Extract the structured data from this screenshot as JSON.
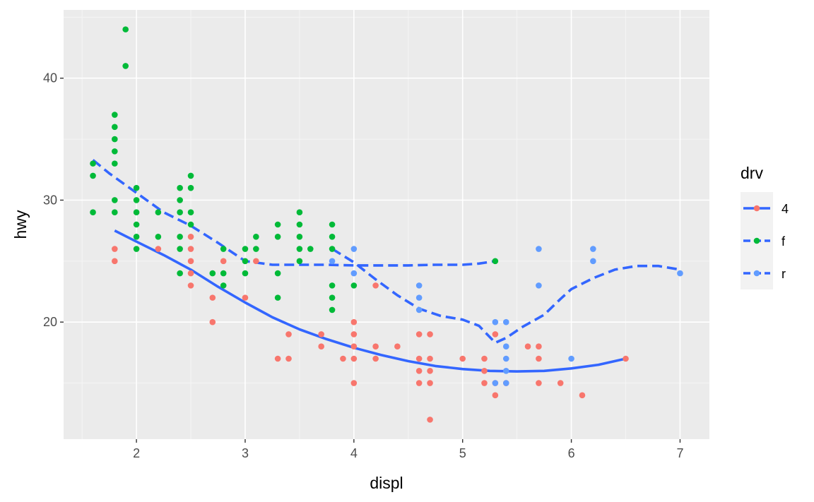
{
  "chart_data": {
    "type": "scatter",
    "title": "",
    "xlabel": "displ",
    "ylabel": "hwy",
    "xlim": [
      1.33,
      7.27
    ],
    "ylim": [
      10.4,
      45.6
    ],
    "x_ticks": [
      2,
      3,
      4,
      5,
      6,
      7
    ],
    "y_ticks": [
      20,
      30,
      40
    ],
    "grid": true,
    "legend": {
      "title": "drv",
      "position": "right",
      "entries": [
        {
          "label": "4",
          "color": "#F8766D",
          "linetype": "solid"
        },
        {
          "label": "f",
          "color": "#00BA38",
          "linetype": "dashed"
        },
        {
          "label": "r",
          "color": "#619CFF",
          "linetype": "dashed"
        }
      ]
    },
    "smooth_color": "#3366FF",
    "series": [
      {
        "name": "4",
        "color": "#F8766D",
        "points": [
          [
            1.8,
            26
          ],
          [
            1.8,
            25
          ],
          [
            2.2,
            26
          ],
          [
            2.5,
            27
          ],
          [
            2.5,
            26
          ],
          [
            2.5,
            25
          ],
          [
            2.5,
            24
          ],
          [
            2.5,
            23
          ],
          [
            2.7,
            22
          ],
          [
            2.7,
            20
          ],
          [
            2.8,
            25
          ],
          [
            3.0,
            22
          ],
          [
            3.1,
            25
          ],
          [
            3.3,
            17
          ],
          [
            3.4,
            19
          ],
          [
            3.4,
            17
          ],
          [
            3.7,
            19
          ],
          [
            3.7,
            18
          ],
          [
            3.9,
            17
          ],
          [
            4.0,
            20
          ],
          [
            4.0,
            19
          ],
          [
            4.0,
            18
          ],
          [
            4.0,
            17
          ],
          [
            4.0,
            15
          ],
          [
            4.2,
            23
          ],
          [
            4.2,
            18
          ],
          [
            4.2,
            17
          ],
          [
            4.4,
            18
          ],
          [
            4.6,
            19
          ],
          [
            4.6,
            17
          ],
          [
            4.6,
            16
          ],
          [
            4.6,
            15
          ],
          [
            4.7,
            19
          ],
          [
            4.7,
            17
          ],
          [
            4.7,
            16
          ],
          [
            4.7,
            15
          ],
          [
            4.7,
            12
          ],
          [
            5.0,
            17
          ],
          [
            5.2,
            17
          ],
          [
            5.2,
            16
          ],
          [
            5.2,
            15
          ],
          [
            5.3,
            19
          ],
          [
            5.3,
            15
          ],
          [
            5.3,
            14
          ],
          [
            5.4,
            15
          ],
          [
            5.6,
            18
          ],
          [
            5.7,
            18
          ],
          [
            5.7,
            17
          ],
          [
            5.7,
            15
          ],
          [
            5.9,
            15
          ],
          [
            6.1,
            14
          ],
          [
            6.5,
            17
          ]
        ],
        "smooth": [
          [
            1.8,
            27.5
          ],
          [
            2.0,
            26.6
          ],
          [
            2.25,
            25.5
          ],
          [
            2.5,
            24.3
          ],
          [
            2.75,
            22.9
          ],
          [
            3.0,
            21.6
          ],
          [
            3.25,
            20.4
          ],
          [
            3.5,
            19.4
          ],
          [
            3.75,
            18.6
          ],
          [
            4.0,
            17.9
          ],
          [
            4.25,
            17.3
          ],
          [
            4.5,
            16.8
          ],
          [
            4.75,
            16.4
          ],
          [
            5.0,
            16.15
          ],
          [
            5.25,
            16.0
          ],
          [
            5.5,
            15.95
          ],
          [
            5.75,
            16.0
          ],
          [
            6.0,
            16.2
          ],
          [
            6.25,
            16.5
          ],
          [
            6.5,
            17.0
          ]
        ]
      },
      {
        "name": "f",
        "color": "#00BA38",
        "points": [
          [
            1.6,
            33
          ],
          [
            1.6,
            32
          ],
          [
            1.6,
            29
          ],
          [
            1.8,
            37
          ],
          [
            1.8,
            36
          ],
          [
            1.8,
            35
          ],
          [
            1.8,
            34
          ],
          [
            1.8,
            33
          ],
          [
            1.8,
            30
          ],
          [
            1.8,
            29
          ],
          [
            1.9,
            44
          ],
          [
            1.9,
            41
          ],
          [
            2.0,
            31
          ],
          [
            2.0,
            30
          ],
          [
            2.0,
            29
          ],
          [
            2.0,
            28
          ],
          [
            2.0,
            27
          ],
          [
            2.0,
            26
          ],
          [
            2.2,
            29
          ],
          [
            2.2,
            27
          ],
          [
            2.4,
            31
          ],
          [
            2.4,
            30
          ],
          [
            2.4,
            29
          ],
          [
            2.4,
            27
          ],
          [
            2.4,
            26
          ],
          [
            2.4,
            24
          ],
          [
            2.5,
            32
          ],
          [
            2.5,
            31
          ],
          [
            2.5,
            29
          ],
          [
            2.5,
            28
          ],
          [
            2.7,
            24
          ],
          [
            2.8,
            26
          ],
          [
            2.8,
            24
          ],
          [
            2.8,
            23
          ],
          [
            3.0,
            26
          ],
          [
            3.0,
            25
          ],
          [
            3.0,
            24
          ],
          [
            3.1,
            27
          ],
          [
            3.1,
            26
          ],
          [
            3.3,
            28
          ],
          [
            3.3,
            27
          ],
          [
            3.3,
            24
          ],
          [
            3.3,
            22
          ],
          [
            3.5,
            29
          ],
          [
            3.5,
            28
          ],
          [
            3.5,
            27
          ],
          [
            3.5,
            26
          ],
          [
            3.5,
            25
          ],
          [
            3.6,
            26
          ],
          [
            3.8,
            28
          ],
          [
            3.8,
            27
          ],
          [
            3.8,
            26
          ],
          [
            3.8,
            23
          ],
          [
            3.8,
            22
          ],
          [
            3.8,
            21
          ],
          [
            4.0,
            23
          ],
          [
            5.3,
            25
          ]
        ],
        "smooth": [
          [
            1.6,
            33.3
          ],
          [
            1.75,
            32.2
          ],
          [
            2.0,
            30.6
          ],
          [
            2.25,
            29.0
          ],
          [
            2.5,
            27.9
          ],
          [
            2.75,
            26.5
          ],
          [
            3.0,
            25.0
          ],
          [
            3.25,
            24.7
          ],
          [
            3.5,
            24.7
          ],
          [
            3.75,
            24.7
          ],
          [
            4.0,
            24.65
          ],
          [
            4.25,
            24.65
          ],
          [
            4.5,
            24.65
          ],
          [
            4.75,
            24.7
          ],
          [
            5.0,
            24.7
          ],
          [
            5.15,
            24.8
          ],
          [
            5.3,
            25.0
          ]
        ]
      },
      {
        "name": "r",
        "color": "#619CFF",
        "points": [
          [
            3.8,
            25
          ],
          [
            4.0,
            26
          ],
          [
            4.0,
            24
          ],
          [
            4.6,
            23
          ],
          [
            4.6,
            22
          ],
          [
            4.6,
            21
          ],
          [
            5.3,
            20
          ],
          [
            5.3,
            15
          ],
          [
            5.4,
            20
          ],
          [
            5.4,
            18
          ],
          [
            5.4,
            17
          ],
          [
            5.4,
            16
          ],
          [
            5.4,
            15
          ],
          [
            5.7,
            26
          ],
          [
            5.7,
            23
          ],
          [
            6.0,
            17
          ],
          [
            6.2,
            26
          ],
          [
            6.2,
            25
          ],
          [
            7.0,
            24
          ]
        ],
        "smooth": [
          [
            3.8,
            26.0
          ],
          [
            4.0,
            24.9
          ],
          [
            4.2,
            23.5
          ],
          [
            4.4,
            22.2
          ],
          [
            4.6,
            21.1
          ],
          [
            4.8,
            20.5
          ],
          [
            5.0,
            20.2
          ],
          [
            5.15,
            19.7
          ],
          [
            5.3,
            18.3
          ],
          [
            5.4,
            18.7
          ],
          [
            5.55,
            19.6
          ],
          [
            5.75,
            20.6
          ],
          [
            5.9,
            21.9
          ],
          [
            6.0,
            22.7
          ],
          [
            6.2,
            23.6
          ],
          [
            6.4,
            24.3
          ],
          [
            6.6,
            24.6
          ],
          [
            6.8,
            24.6
          ],
          [
            7.0,
            24.3
          ]
        ]
      }
    ]
  }
}
